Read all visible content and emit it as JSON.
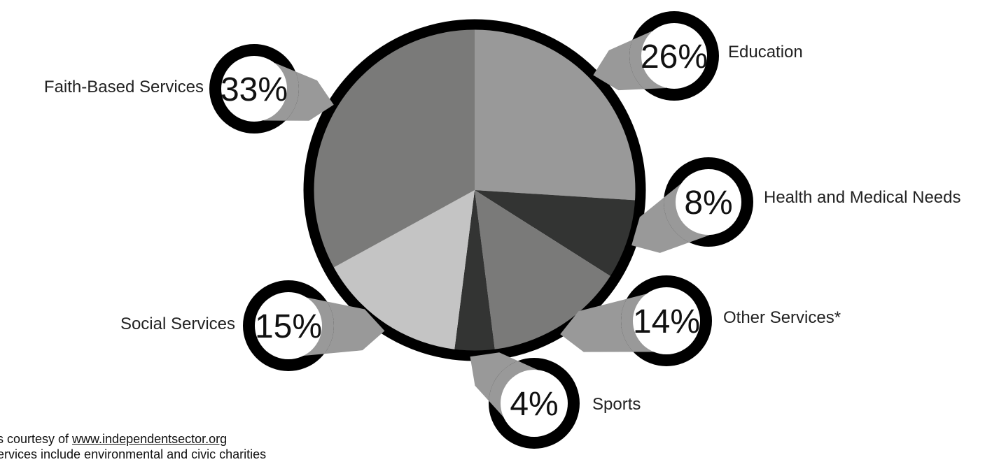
{
  "chart_data": {
    "type": "pie",
    "categories": [
      "Education",
      "Health and Medical Needs",
      "Other Services*",
      "Sports",
      "Social Services",
      "Faith-Based Services"
    ],
    "values": [
      26,
      8,
      14,
      4,
      15,
      33
    ],
    "value_labels": [
      "26%",
      "8%",
      "14%",
      "4%",
      "15%",
      "33%"
    ],
    "slice_colors": [
      "#999999",
      "#333433",
      "#7a7a79",
      "#333433",
      "#c4c4c4",
      "#7a7a79"
    ],
    "outline_color": "#000000",
    "callout_color": "#999999",
    "title": "",
    "legend": "none"
  },
  "footnotes": {
    "source_prefix": "s courtesy of ",
    "source_link": "www.independentsector.org",
    "other_note": "ervices include environmental and civic charities"
  }
}
